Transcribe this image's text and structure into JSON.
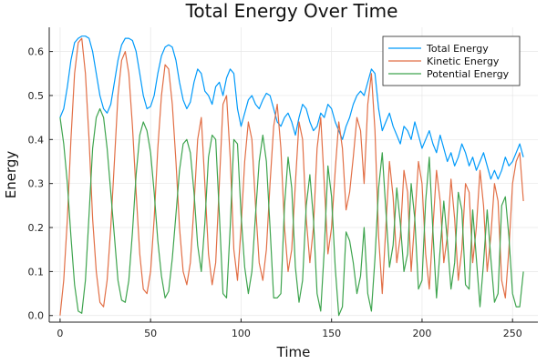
{
  "chart_data": {
    "type": "line",
    "title": "Total Energy Over Time",
    "xlabel": "Time",
    "ylabel": "Energy",
    "xlim": [
      -6,
      264
    ],
    "ylim": [
      -0.015,
      0.655
    ],
    "xticks": [
      0,
      50,
      100,
      150,
      200,
      250
    ],
    "yticks": [
      0.0,
      0.1,
      0.2,
      0.3,
      0.4,
      0.5,
      0.6
    ],
    "ytick_labels": [
      "0.0",
      "0.1",
      "0.2",
      "0.3",
      "0.4",
      "0.5",
      "0.6"
    ],
    "grid": true,
    "legend_position": "top-right",
    "series": [
      {
        "name": "Total Energy",
        "color": "#009AFA",
        "x": [
          0,
          2,
          4,
          6,
          8,
          10,
          12,
          14,
          16,
          18,
          20,
          22,
          24,
          26,
          28,
          30,
          32,
          34,
          36,
          38,
          40,
          42,
          44,
          46,
          48,
          50,
          52,
          54,
          56,
          58,
          60,
          62,
          64,
          66,
          68,
          70,
          72,
          74,
          76,
          78,
          80,
          82,
          84,
          86,
          88,
          90,
          92,
          94,
          96,
          98,
          100,
          102,
          104,
          106,
          108,
          110,
          112,
          114,
          116,
          118,
          120,
          122,
          124,
          126,
          128,
          130,
          132,
          134,
          136,
          138,
          140,
          142,
          144,
          146,
          148,
          150,
          152,
          154,
          156,
          158,
          160,
          162,
          164,
          166,
          168,
          170,
          172,
          174,
          176,
          178,
          180,
          182,
          184,
          186,
          188,
          190,
          192,
          194,
          196,
          198,
          200,
          202,
          204,
          206,
          208,
          210,
          212,
          214,
          216,
          218,
          220,
          222,
          224,
          226,
          228,
          230,
          232,
          234,
          236,
          238,
          240,
          242,
          244,
          246,
          248,
          250,
          252,
          254,
          256
        ],
        "y": [
          0.45,
          0.47,
          0.52,
          0.58,
          0.62,
          0.63,
          0.635,
          0.635,
          0.63,
          0.6,
          0.55,
          0.5,
          0.47,
          0.46,
          0.48,
          0.53,
          0.58,
          0.615,
          0.63,
          0.63,
          0.625,
          0.6,
          0.55,
          0.5,
          0.47,
          0.475,
          0.5,
          0.55,
          0.59,
          0.61,
          0.615,
          0.61,
          0.58,
          0.53,
          0.49,
          0.47,
          0.485,
          0.53,
          0.56,
          0.55,
          0.51,
          0.5,
          0.48,
          0.52,
          0.53,
          0.5,
          0.54,
          0.56,
          0.55,
          0.47,
          0.43,
          0.46,
          0.49,
          0.5,
          0.48,
          0.47,
          0.49,
          0.505,
          0.5,
          0.47,
          0.44,
          0.43,
          0.45,
          0.46,
          0.44,
          0.41,
          0.45,
          0.48,
          0.47,
          0.44,
          0.42,
          0.43,
          0.46,
          0.45,
          0.48,
          0.47,
          0.44,
          0.42,
          0.4,
          0.43,
          0.45,
          0.48,
          0.5,
          0.51,
          0.5,
          0.53,
          0.56,
          0.55,
          0.47,
          0.42,
          0.44,
          0.46,
          0.43,
          0.41,
          0.39,
          0.43,
          0.42,
          0.4,
          0.44,
          0.41,
          0.38,
          0.4,
          0.42,
          0.39,
          0.37,
          0.41,
          0.38,
          0.35,
          0.37,
          0.34,
          0.36,
          0.39,
          0.37,
          0.34,
          0.36,
          0.33,
          0.35,
          0.37,
          0.34,
          0.31,
          0.33,
          0.31,
          0.33,
          0.36,
          0.34,
          0.35,
          0.37,
          0.39,
          0.36
        ]
      },
      {
        "name": "Kinetic Energy",
        "color": "#E26F46",
        "x": [
          0,
          2,
          4,
          6,
          8,
          10,
          12,
          14,
          16,
          18,
          20,
          22,
          24,
          26,
          28,
          30,
          32,
          34,
          36,
          38,
          40,
          42,
          44,
          46,
          48,
          50,
          52,
          54,
          56,
          58,
          60,
          62,
          64,
          66,
          68,
          70,
          72,
          74,
          76,
          78,
          80,
          82,
          84,
          86,
          88,
          90,
          92,
          94,
          96,
          98,
          100,
          102,
          104,
          106,
          108,
          110,
          112,
          114,
          116,
          118,
          120,
          122,
          124,
          126,
          128,
          130,
          132,
          134,
          136,
          138,
          140,
          142,
          144,
          146,
          148,
          150,
          152,
          154,
          156,
          158,
          160,
          162,
          164,
          166,
          168,
          170,
          172,
          174,
          176,
          178,
          180,
          182,
          184,
          186,
          188,
          190,
          192,
          194,
          196,
          198,
          200,
          202,
          204,
          206,
          208,
          210,
          212,
          214,
          216,
          218,
          220,
          222,
          224,
          226,
          228,
          230,
          232,
          234,
          236,
          238,
          240,
          242,
          244,
          246,
          248,
          250,
          252,
          254,
          256
        ],
        "y": [
          0.0,
          0.08,
          0.22,
          0.4,
          0.55,
          0.62,
          0.63,
          0.55,
          0.4,
          0.22,
          0.1,
          0.03,
          0.02,
          0.08,
          0.2,
          0.35,
          0.5,
          0.58,
          0.6,
          0.55,
          0.43,
          0.28,
          0.14,
          0.06,
          0.05,
          0.1,
          0.22,
          0.38,
          0.5,
          0.57,
          0.56,
          0.48,
          0.35,
          0.2,
          0.1,
          0.07,
          0.12,
          0.25,
          0.4,
          0.45,
          0.3,
          0.14,
          0.07,
          0.12,
          0.3,
          0.48,
          0.5,
          0.36,
          0.15,
          0.08,
          0.2,
          0.35,
          0.44,
          0.4,
          0.25,
          0.12,
          0.08,
          0.15,
          0.3,
          0.43,
          0.48,
          0.38,
          0.2,
          0.1,
          0.15,
          0.3,
          0.44,
          0.4,
          0.22,
          0.12,
          0.2,
          0.38,
          0.45,
          0.3,
          0.14,
          0.2,
          0.33,
          0.44,
          0.38,
          0.24,
          0.28,
          0.36,
          0.45,
          0.42,
          0.3,
          0.48,
          0.55,
          0.42,
          0.18,
          0.05,
          0.2,
          0.35,
          0.27,
          0.12,
          0.18,
          0.33,
          0.28,
          0.1,
          0.22,
          0.35,
          0.3,
          0.14,
          0.06,
          0.2,
          0.33,
          0.26,
          0.12,
          0.18,
          0.31,
          0.22,
          0.08,
          0.15,
          0.3,
          0.28,
          0.12,
          0.2,
          0.33,
          0.25,
          0.1,
          0.18,
          0.3,
          0.26,
          0.08,
          0.04,
          0.15,
          0.3,
          0.35,
          0.37,
          0.26
        ]
      },
      {
        "name": "Potential Energy",
        "color": "#3EA44E",
        "x": [
          0,
          2,
          4,
          6,
          8,
          10,
          12,
          14,
          16,
          18,
          20,
          22,
          24,
          26,
          28,
          30,
          32,
          34,
          36,
          38,
          40,
          42,
          44,
          46,
          48,
          50,
          52,
          54,
          56,
          58,
          60,
          62,
          64,
          66,
          68,
          70,
          72,
          74,
          76,
          78,
          80,
          82,
          84,
          86,
          88,
          90,
          92,
          94,
          96,
          98,
          100,
          102,
          104,
          106,
          108,
          110,
          112,
          114,
          116,
          118,
          120,
          122,
          124,
          126,
          128,
          130,
          132,
          134,
          136,
          138,
          140,
          142,
          144,
          146,
          148,
          150,
          152,
          154,
          156,
          158,
          160,
          162,
          164,
          166,
          168,
          170,
          172,
          174,
          176,
          178,
          180,
          182,
          184,
          186,
          188,
          190,
          192,
          194,
          196,
          198,
          200,
          202,
          204,
          206,
          208,
          210,
          212,
          214,
          216,
          218,
          220,
          222,
          224,
          226,
          228,
          230,
          232,
          234,
          236,
          238,
          240,
          242,
          244,
          246,
          248,
          250,
          252,
          254,
          256
        ],
        "y": [
          0.45,
          0.39,
          0.3,
          0.18,
          0.07,
          0.01,
          0.005,
          0.08,
          0.23,
          0.38,
          0.45,
          0.47,
          0.45,
          0.38,
          0.28,
          0.18,
          0.08,
          0.035,
          0.03,
          0.08,
          0.19,
          0.32,
          0.41,
          0.44,
          0.42,
          0.37,
          0.28,
          0.17,
          0.09,
          0.04,
          0.055,
          0.13,
          0.23,
          0.33,
          0.39,
          0.4,
          0.37,
          0.28,
          0.16,
          0.1,
          0.21,
          0.36,
          0.41,
          0.4,
          0.23,
          0.05,
          0.04,
          0.2,
          0.4,
          0.39,
          0.23,
          0.11,
          0.05,
          0.1,
          0.23,
          0.35,
          0.41,
          0.35,
          0.2,
          0.04,
          0.04,
          0.05,
          0.25,
          0.36,
          0.29,
          0.11,
          0.03,
          0.08,
          0.25,
          0.32,
          0.22,
          0.05,
          0.01,
          0.15,
          0.34,
          0.27,
          0.11,
          0.0,
          0.02,
          0.19,
          0.17,
          0.12,
          0.05,
          0.09,
          0.2,
          0.05,
          0.01,
          0.13,
          0.29,
          0.37,
          0.24,
          0.11,
          0.16,
          0.29,
          0.21,
          0.1,
          0.14,
          0.3,
          0.22,
          0.06,
          0.08,
          0.26,
          0.36,
          0.19,
          0.04,
          0.15,
          0.26,
          0.17,
          0.06,
          0.12,
          0.28,
          0.24,
          0.07,
          0.06,
          0.24,
          0.13,
          0.02,
          0.12,
          0.24,
          0.13,
          0.03,
          0.05,
          0.25,
          0.27,
          0.18,
          0.05,
          0.02,
          0.02,
          0.1
        ]
      }
    ]
  }
}
